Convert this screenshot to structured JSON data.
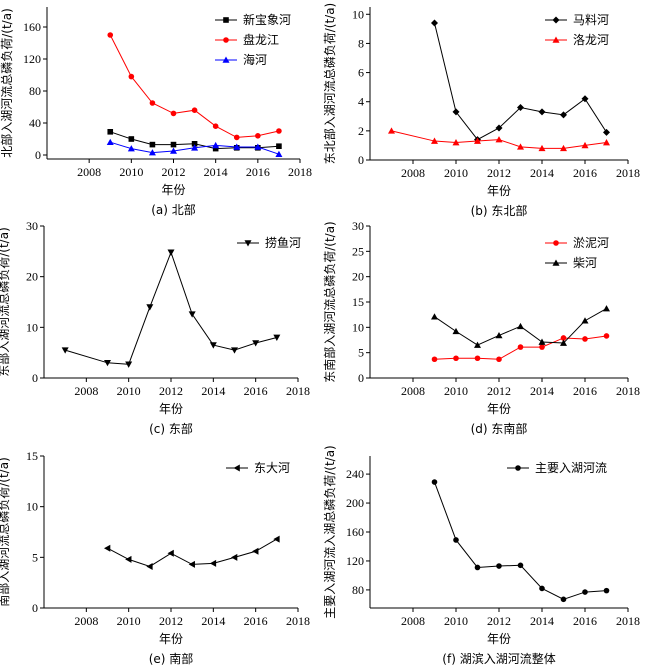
{
  "chart_data": [
    {
      "type": "line",
      "caption": "(a) 北部",
      "xlabel": "年份",
      "ylabel": "北部入湖河流总磷负荷/(t/a)",
      "xlim": [
        2006,
        2018
      ],
      "ylim": [
        -5,
        185
      ],
      "xticks": [
        2008,
        2010,
        2012,
        2014,
        2016,
        2018
      ],
      "yticks": [
        0,
        40,
        80,
        120,
        160
      ],
      "legend_position": "top-right",
      "series": [
        {
          "name": "新宝象河",
          "color": "#000000",
          "marker": "square",
          "x": [
            2009,
            2010,
            2011,
            2012,
            2013,
            2014,
            2015,
            2016,
            2017
          ],
          "y": [
            29,
            20,
            13,
            13,
            14,
            8,
            9,
            9,
            11
          ]
        },
        {
          "name": "盘龙江",
          "color": "#ff0000",
          "marker": "circle",
          "x": [
            2009,
            2010,
            2011,
            2012,
            2013,
            2014,
            2015,
            2016,
            2017
          ],
          "y": [
            150,
            98,
            65,
            52,
            56,
            36,
            22,
            24,
            30
          ]
        },
        {
          "name": "海河",
          "color": "#0000ff",
          "marker": "triangle-up",
          "x": [
            2009,
            2010,
            2011,
            2012,
            2013,
            2014,
            2015,
            2016,
            2017
          ],
          "y": [
            16,
            8,
            3,
            5,
            9,
            12,
            10,
            10,
            1
          ]
        }
      ]
    },
    {
      "type": "line",
      "caption": "(b) 东北部",
      "xlabel": "年份",
      "ylabel": "东北部入湖河流总磷负荷/(t/a)",
      "xlim": [
        2006,
        2018
      ],
      "ylim": [
        0,
        10.5
      ],
      "xticks": [
        2008,
        2010,
        2012,
        2014,
        2016,
        2018
      ],
      "yticks": [
        0,
        2,
        4,
        6,
        8,
        10
      ],
      "legend_position": "top-right",
      "series": [
        {
          "name": "马料河",
          "color": "#000000",
          "marker": "diamond",
          "x": [
            2009,
            2010,
            2011,
            2012,
            2013,
            2014,
            2015,
            2016,
            2017
          ],
          "y": [
            9.4,
            3.3,
            1.4,
            2.2,
            3.6,
            3.3,
            3.1,
            4.2,
            1.9
          ]
        },
        {
          "name": "洛龙河",
          "color": "#ff0000",
          "marker": "triangle-up",
          "x": [
            2007,
            2009,
            2010,
            2011,
            2012,
            2013,
            2014,
            2015,
            2016,
            2017
          ],
          "y": [
            2.0,
            1.3,
            1.2,
            1.3,
            1.4,
            0.9,
            0.8,
            0.8,
            1.0,
            1.2
          ]
        }
      ]
    },
    {
      "type": "line",
      "caption": "(c) 东部",
      "xlabel": "年份",
      "ylabel": "东部入湖河流总磷负荷/(t/a)",
      "xlim": [
        2006,
        2018
      ],
      "ylim": [
        0,
        30
      ],
      "xticks": [
        2008,
        2010,
        2012,
        2014,
        2016,
        2018
      ],
      "yticks": [
        0,
        10,
        20,
        30
      ],
      "legend_position": "top-right",
      "series": [
        {
          "name": "捞鱼河",
          "color": "#000000",
          "marker": "triangle-down",
          "x": [
            2007,
            2009,
            2010,
            2011,
            2012,
            2013,
            2014,
            2015,
            2016,
            2017
          ],
          "y": [
            5.5,
            3.0,
            2.7,
            14.0,
            24.8,
            12.6,
            6.5,
            5.5,
            6.9,
            8.0
          ]
        }
      ]
    },
    {
      "type": "line",
      "caption": "(d) 东南部",
      "xlabel": "年份",
      "ylabel": "东南部入湖河流总磷负荷/(t/a)",
      "xlim": [
        2006,
        2018
      ],
      "ylim": [
        0,
        30
      ],
      "xticks": [
        2008,
        2010,
        2012,
        2014,
        2016,
        2018
      ],
      "yticks": [
        0,
        5,
        10,
        15,
        20,
        25,
        30
      ],
      "legend_position": "top-right",
      "series": [
        {
          "name": "淤泥河",
          "color": "#ff0000",
          "marker": "circle",
          "x": [
            2009,
            2010,
            2011,
            2012,
            2013,
            2014,
            2015,
            2016,
            2017
          ],
          "y": [
            3.7,
            3.9,
            3.9,
            3.7,
            6.1,
            6.1,
            7.9,
            7.7,
            8.3
          ]
        },
        {
          "name": "柴河",
          "color": "#000000",
          "marker": "triangle-up",
          "x": [
            2009,
            2010,
            2011,
            2012,
            2013,
            2014,
            2015,
            2016,
            2017
          ],
          "y": [
            12.1,
            9.2,
            6.5,
            8.4,
            10.2,
            7.1,
            6.9,
            11.3,
            13.7
          ]
        }
      ]
    },
    {
      "type": "line",
      "caption": "(e) 南部",
      "xlabel": "年份",
      "ylabel": "南部入湖河流总磷负荷/(t/a)",
      "xlim": [
        2006,
        2018
      ],
      "ylim": [
        0,
        15
      ],
      "xticks": [
        2008,
        2010,
        2012,
        2014,
        2016,
        2018
      ],
      "yticks": [
        0,
        5,
        10,
        15
      ],
      "legend_position": "top-right",
      "series": [
        {
          "name": "东大河",
          "color": "#000000",
          "marker": "triangle-left",
          "x": [
            2009,
            2010,
            2011,
            2012,
            2013,
            2014,
            2015,
            2016,
            2017
          ],
          "y": [
            5.9,
            4.8,
            4.1,
            5.4,
            4.3,
            4.4,
            5.0,
            5.6,
            6.8
          ]
        }
      ]
    },
    {
      "type": "line",
      "caption": "(f) 湖滨入湖河流整体",
      "xlabel": "年份",
      "ylabel": "主要入湖河流入湖总磷负荷/(t/a)",
      "xlim": [
        2006,
        2018
      ],
      "ylim": [
        55,
        265
      ],
      "xticks": [
        2008,
        2010,
        2012,
        2014,
        2016,
        2018
      ],
      "yticks": [
        80,
        120,
        160,
        200,
        240
      ],
      "legend_position": "top-right",
      "series": [
        {
          "name": "主要入湖河流",
          "color": "#000000",
          "marker": "circle",
          "x": [
            2009,
            2010,
            2011,
            2012,
            2013,
            2014,
            2015,
            2016,
            2017
          ],
          "y": [
            229,
            149,
            111,
            113,
            114,
            82,
            67,
            77,
            79
          ]
        }
      ]
    }
  ]
}
